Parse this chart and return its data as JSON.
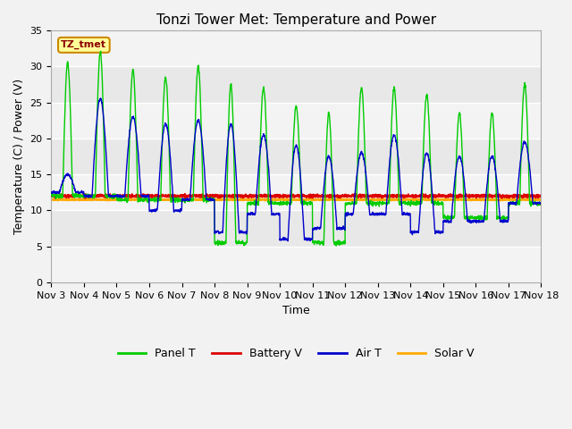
{
  "title": "Tonzi Tower Met: Temperature and Power",
  "xlabel": "Time",
  "ylabel": "Temperature (C) / Power (V)",
  "ylim": [
    0,
    35
  ],
  "xlim": [
    0,
    15
  ],
  "fig_bg_color": "#f0f0f0",
  "plot_bg_color": "#e8e8e8",
  "annotation_label": "TZ_tmet",
  "annotation_fg": "#8b0000",
  "annotation_bg": "#ffff99",
  "annotation_border": "#cc8800",
  "x_tick_labels": [
    "Nov 3",
    "Nov 4",
    "Nov 5",
    "Nov 6",
    "Nov 7",
    "Nov 8",
    "Nov 9",
    "Nov 10",
    "Nov 11",
    "Nov 12",
    "Nov 13",
    "Nov 14",
    "Nov 15",
    "Nov 16",
    "Nov 17",
    "Nov 18"
  ],
  "legend_labels": [
    "Panel T",
    "Battery V",
    "Air T",
    "Solar V"
  ],
  "legend_colors": [
    "#00cc00",
    "#dd0000",
    "#0000cc",
    "#ffaa00"
  ],
  "panel_t_color": "#00cc00",
  "battery_v_color": "#dd0000",
  "air_t_color": "#0000cc",
  "solar_v_color": "#ffaa00",
  "title_fontsize": 11,
  "axis_fontsize": 9,
  "tick_fontsize": 8,
  "panel_t_peaks": [
    30.5,
    32,
    29.5,
    28.5,
    30.0,
    27.5,
    27.0,
    24.5,
    23.5,
    27.0,
    27.0,
    26.0,
    23.5,
    23.5,
    27.5
  ],
  "panel_t_troughs": [
    12.0,
    12.0,
    11.5,
    11.5,
    11.5,
    5.5,
    11.0,
    11.0,
    5.5,
    11.0,
    11.0,
    11.0,
    9.0,
    9.0,
    11.0
  ],
  "air_t_peaks": [
    15.0,
    25.5,
    23.0,
    22.0,
    22.5,
    22.0,
    20.5,
    19.0,
    17.5,
    18.0,
    20.5,
    18.0,
    17.5,
    17.5,
    19.5
  ],
  "air_t_troughs": [
    12.5,
    12.0,
    12.0,
    10.0,
    11.5,
    7.0,
    9.5,
    6.0,
    7.5,
    9.5,
    9.5,
    7.0,
    8.5,
    8.5,
    11.0
  ],
  "battery_v_base": 12.0,
  "solar_v_base": 11.5
}
